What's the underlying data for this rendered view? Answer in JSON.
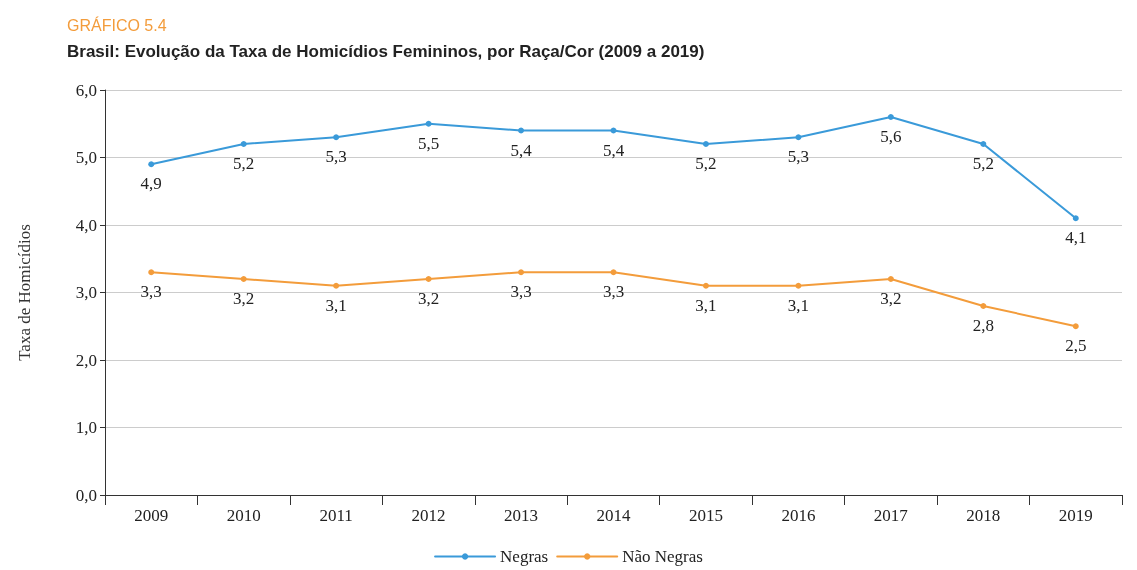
{
  "chart_data": {
    "type": "line",
    "title": "Brasil: Evolução da Taxa de Homicídios Femininos, por Raça/Cor (2009 a 2019)",
    "subtitle": "GRÁFICO 5.4",
    "ylabel": "Taxa de Homicídios",
    "categories": [
      "2009",
      "2010",
      "2011",
      "2012",
      "2013",
      "2014",
      "2015",
      "2016",
      "2017",
      "2018",
      "2019"
    ],
    "series": [
      {
        "name": "Negras",
        "color": "#3a9ad9",
        "values": [
          4.9,
          5.2,
          5.3,
          5.5,
          5.4,
          5.4,
          5.2,
          5.3,
          5.6,
          5.2,
          4.1
        ],
        "value_labels": [
          "4,9",
          "5,2",
          "5,3",
          "5,5",
          "5,4",
          "5,4",
          "5,2",
          "5,3",
          "5,6",
          "5,2",
          "4,1"
        ]
      },
      {
        "name": "Não Negras",
        "color": "#f39c3b",
        "values": [
          3.3,
          3.2,
          3.1,
          3.2,
          3.3,
          3.3,
          3.1,
          3.1,
          3.2,
          2.8,
          2.5
        ],
        "value_labels": [
          "3,3",
          "3,2",
          "3,1",
          "3,2",
          "3,3",
          "3,3",
          "3,1",
          "3,1",
          "3,2",
          "2,8",
          "2,5"
        ]
      }
    ],
    "ylim": [
      0,
      6
    ],
    "yticks": [
      {
        "value": 0,
        "label": "0,0"
      },
      {
        "value": 1,
        "label": "1,0"
      },
      {
        "value": 2,
        "label": "2,0"
      },
      {
        "value": 3,
        "label": "3,0"
      },
      {
        "value": 4,
        "label": "4,0"
      },
      {
        "value": 5,
        "label": "5,0"
      },
      {
        "value": 6,
        "label": "6,0"
      }
    ],
    "grid": "y",
    "legend": "bottom",
    "marker": "circle",
    "line_style": "solid"
  }
}
